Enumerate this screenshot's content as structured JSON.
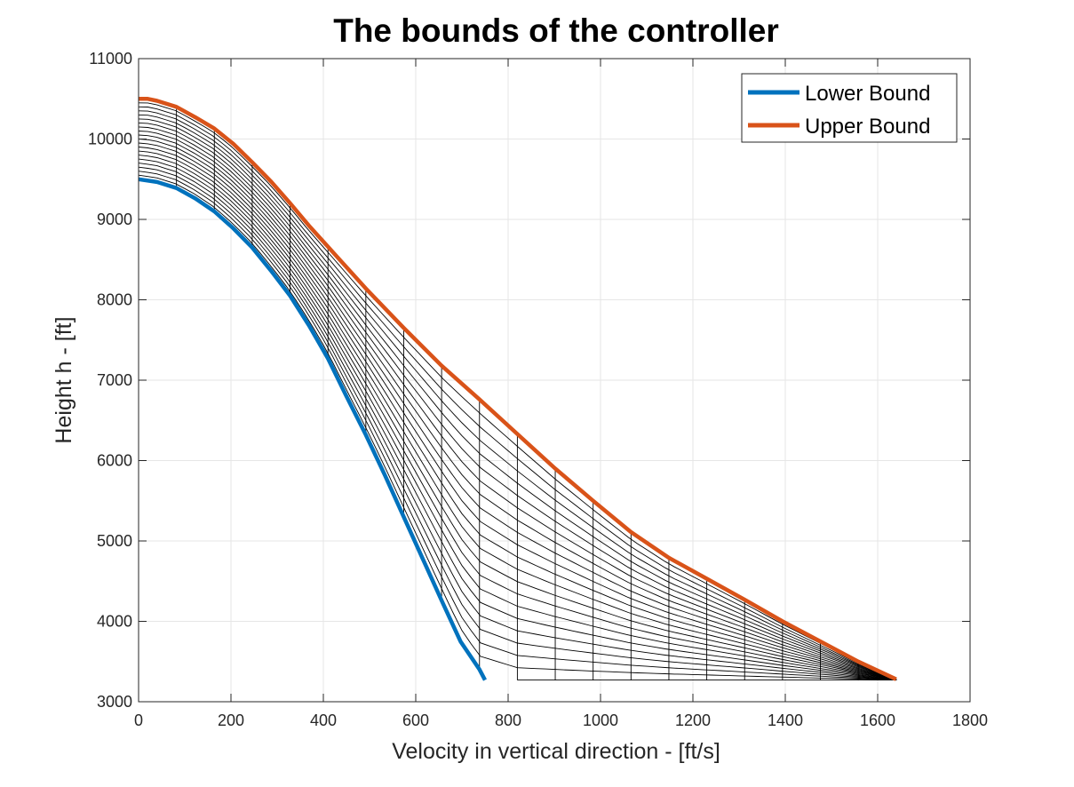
{
  "chart_data": {
    "type": "line",
    "title": "The bounds of the controller",
    "xlabel": "Velocity in vertical direction - [ft/s]",
    "ylabel": "Height h - [ft]",
    "xlim": [
      0,
      1800
    ],
    "ylim": [
      3000,
      11000
    ],
    "xticks": [
      0,
      200,
      400,
      600,
      800,
      1000,
      1200,
      1400,
      1600,
      1800
    ],
    "yticks": [
      3000,
      4000,
      5000,
      6000,
      7000,
      8000,
      9000,
      10000,
      11000
    ],
    "xtick_labels": [
      "0",
      "200",
      "400",
      "600",
      "800",
      "1000",
      "1200",
      "1400",
      "1600",
      "1800"
    ],
    "ytick_labels": [
      "3000",
      "4000",
      "5000",
      "6000",
      "7000",
      "8000",
      "9000",
      "10000",
      "11000"
    ],
    "grid": true,
    "legend_position": "top-right",
    "series": [
      {
        "name": "Lower Bound",
        "color": "#0072BD",
        "x": [
          0,
          40,
          82,
          123,
          164,
          205,
          246,
          287,
          328,
          369,
          410,
          450,
          492,
          533,
          574,
          615,
          656,
          697,
          738,
          750
        ],
        "y": [
          9500,
          9465,
          9390,
          9260,
          9100,
          8890,
          8650,
          8360,
          8050,
          7680,
          7270,
          6800,
          6320,
          5820,
          5300,
          4780,
          4260,
          3750,
          3400,
          3270
        ]
      },
      {
        "name": "Upper Bound",
        "color": "#D95319",
        "x": [
          0,
          20,
          40,
          82,
          123,
          164,
          205,
          246,
          287,
          328,
          369,
          410,
          492,
          574,
          656,
          738,
          820,
          902,
          984,
          1066,
          1148,
          1230,
          1312,
          1394,
          1476,
          1558,
          1640
        ],
        "y": [
          10500,
          10500,
          10475,
          10400,
          10270,
          10130,
          9940,
          9710,
          9470,
          9200,
          8920,
          8660,
          8140,
          7650,
          7180,
          6760,
          6330,
          5900,
          5500,
          5110,
          4790,
          4530,
          4270,
          4000,
          3750,
          3500,
          3280
        ]
      }
    ]
  },
  "legend": {
    "lower_label": "Lower Bound",
    "upper_label": "Upper Bound"
  },
  "colors": {
    "lower": "#0072BD",
    "upper": "#D95319",
    "mesh": "#000000",
    "grid": "#e6e6e6",
    "axis": "#262626"
  }
}
